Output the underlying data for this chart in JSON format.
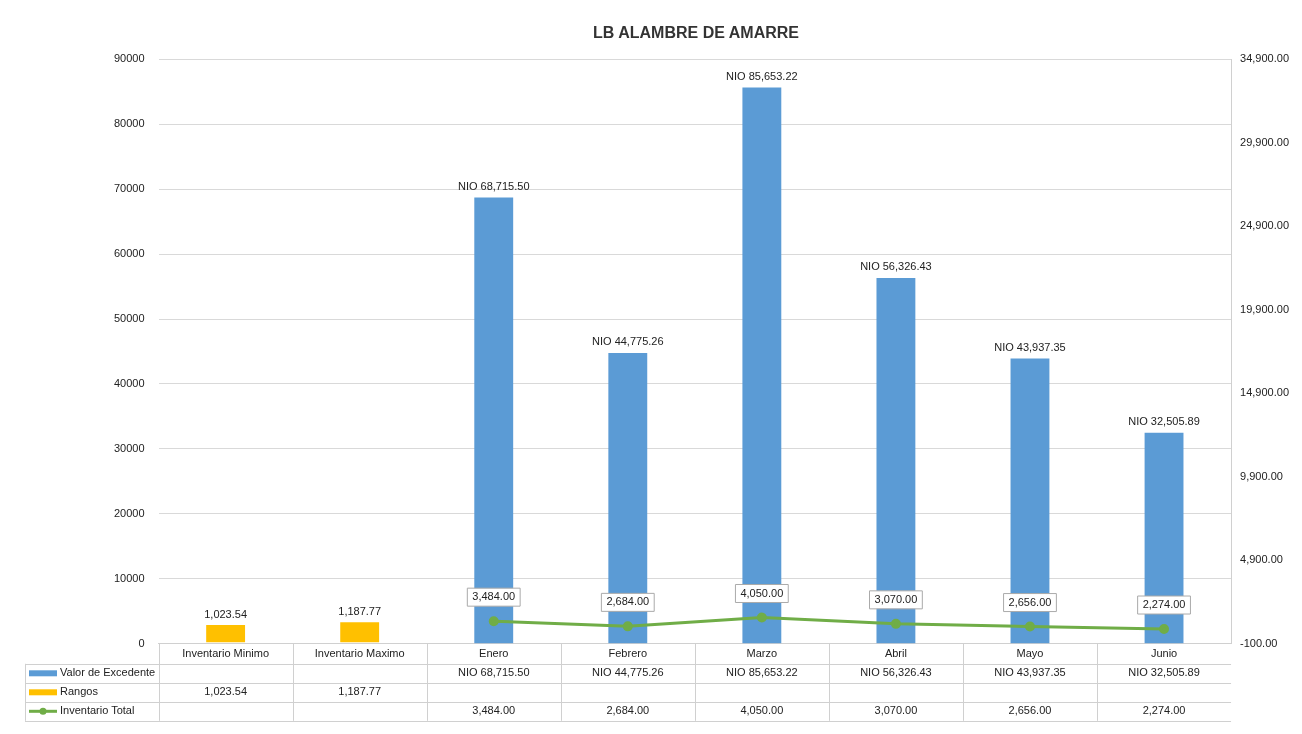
{
  "chart_data": {
    "type": "bar",
    "title": "LB ALAMBRE DE AMARRE",
    "categories": [
      "Inventario Minimo",
      "Inventario Maximo",
      "Enero",
      "Febrero",
      "Marzo",
      "Abril",
      "Mayo",
      "Junio"
    ],
    "series": [
      {
        "name": "Valor de Excedente",
        "color": "#5b9bd5",
        "values": [
          null,
          null,
          68715.5,
          44775.26,
          85653.22,
          56326.43,
          43937.35,
          32505.89
        ],
        "value_labels": [
          null,
          null,
          "NIO 68,715.50",
          "NIO 44,775.26",
          "NIO 85,653.22",
          "NIO 56,326.43",
          "NIO 43,937.35",
          "NIO 32,505.89"
        ]
      },
      {
        "name": "Rangos",
        "axis": "y2",
        "color": "#ffc000",
        "values": [
          1023.54,
          1187.77,
          null,
          null,
          null,
          null,
          null,
          null
        ],
        "value_labels": [
          "1,023.54",
          "1,187.77",
          null,
          null,
          null,
          null,
          null,
          null
        ]
      },
      {
        "name": "Inventario Total",
        "type": "line",
        "color": "#70ad47",
        "values": [
          null,
          null,
          3484.0,
          2684.0,
          4050.0,
          3070.0,
          2656.0,
          2274.0
        ],
        "value_labels": [
          null,
          null,
          "3,484.00",
          "2,684.00",
          "4,050.00",
          "3,070.00",
          "2,656.00",
          "2,274.00"
        ]
      }
    ],
    "ylim": [
      0,
      90000
    ],
    "yticks": [
      0,
      10000,
      20000,
      30000,
      40000,
      50000,
      60000,
      70000,
      80000,
      90000
    ],
    "y2lim": [
      -100,
      34900
    ],
    "y2ticks": [
      {
        "value": -100,
        "label": "-100.00"
      },
      {
        "value": 4900,
        "label": "4,900.00"
      },
      {
        "value": 9900,
        "label": "9,900.00"
      },
      {
        "value": 14900,
        "label": "14,900.00"
      },
      {
        "value": 19900,
        "label": "19,900.00"
      },
      {
        "value": 24900,
        "label": "24,900.00"
      },
      {
        "value": 29900,
        "label": "29,900.00"
      },
      {
        "value": 34900,
        "label": "34,900.00"
      }
    ],
    "grid": "y",
    "legend": "bottom",
    "marker": "circle",
    "line_style": "solid"
  }
}
